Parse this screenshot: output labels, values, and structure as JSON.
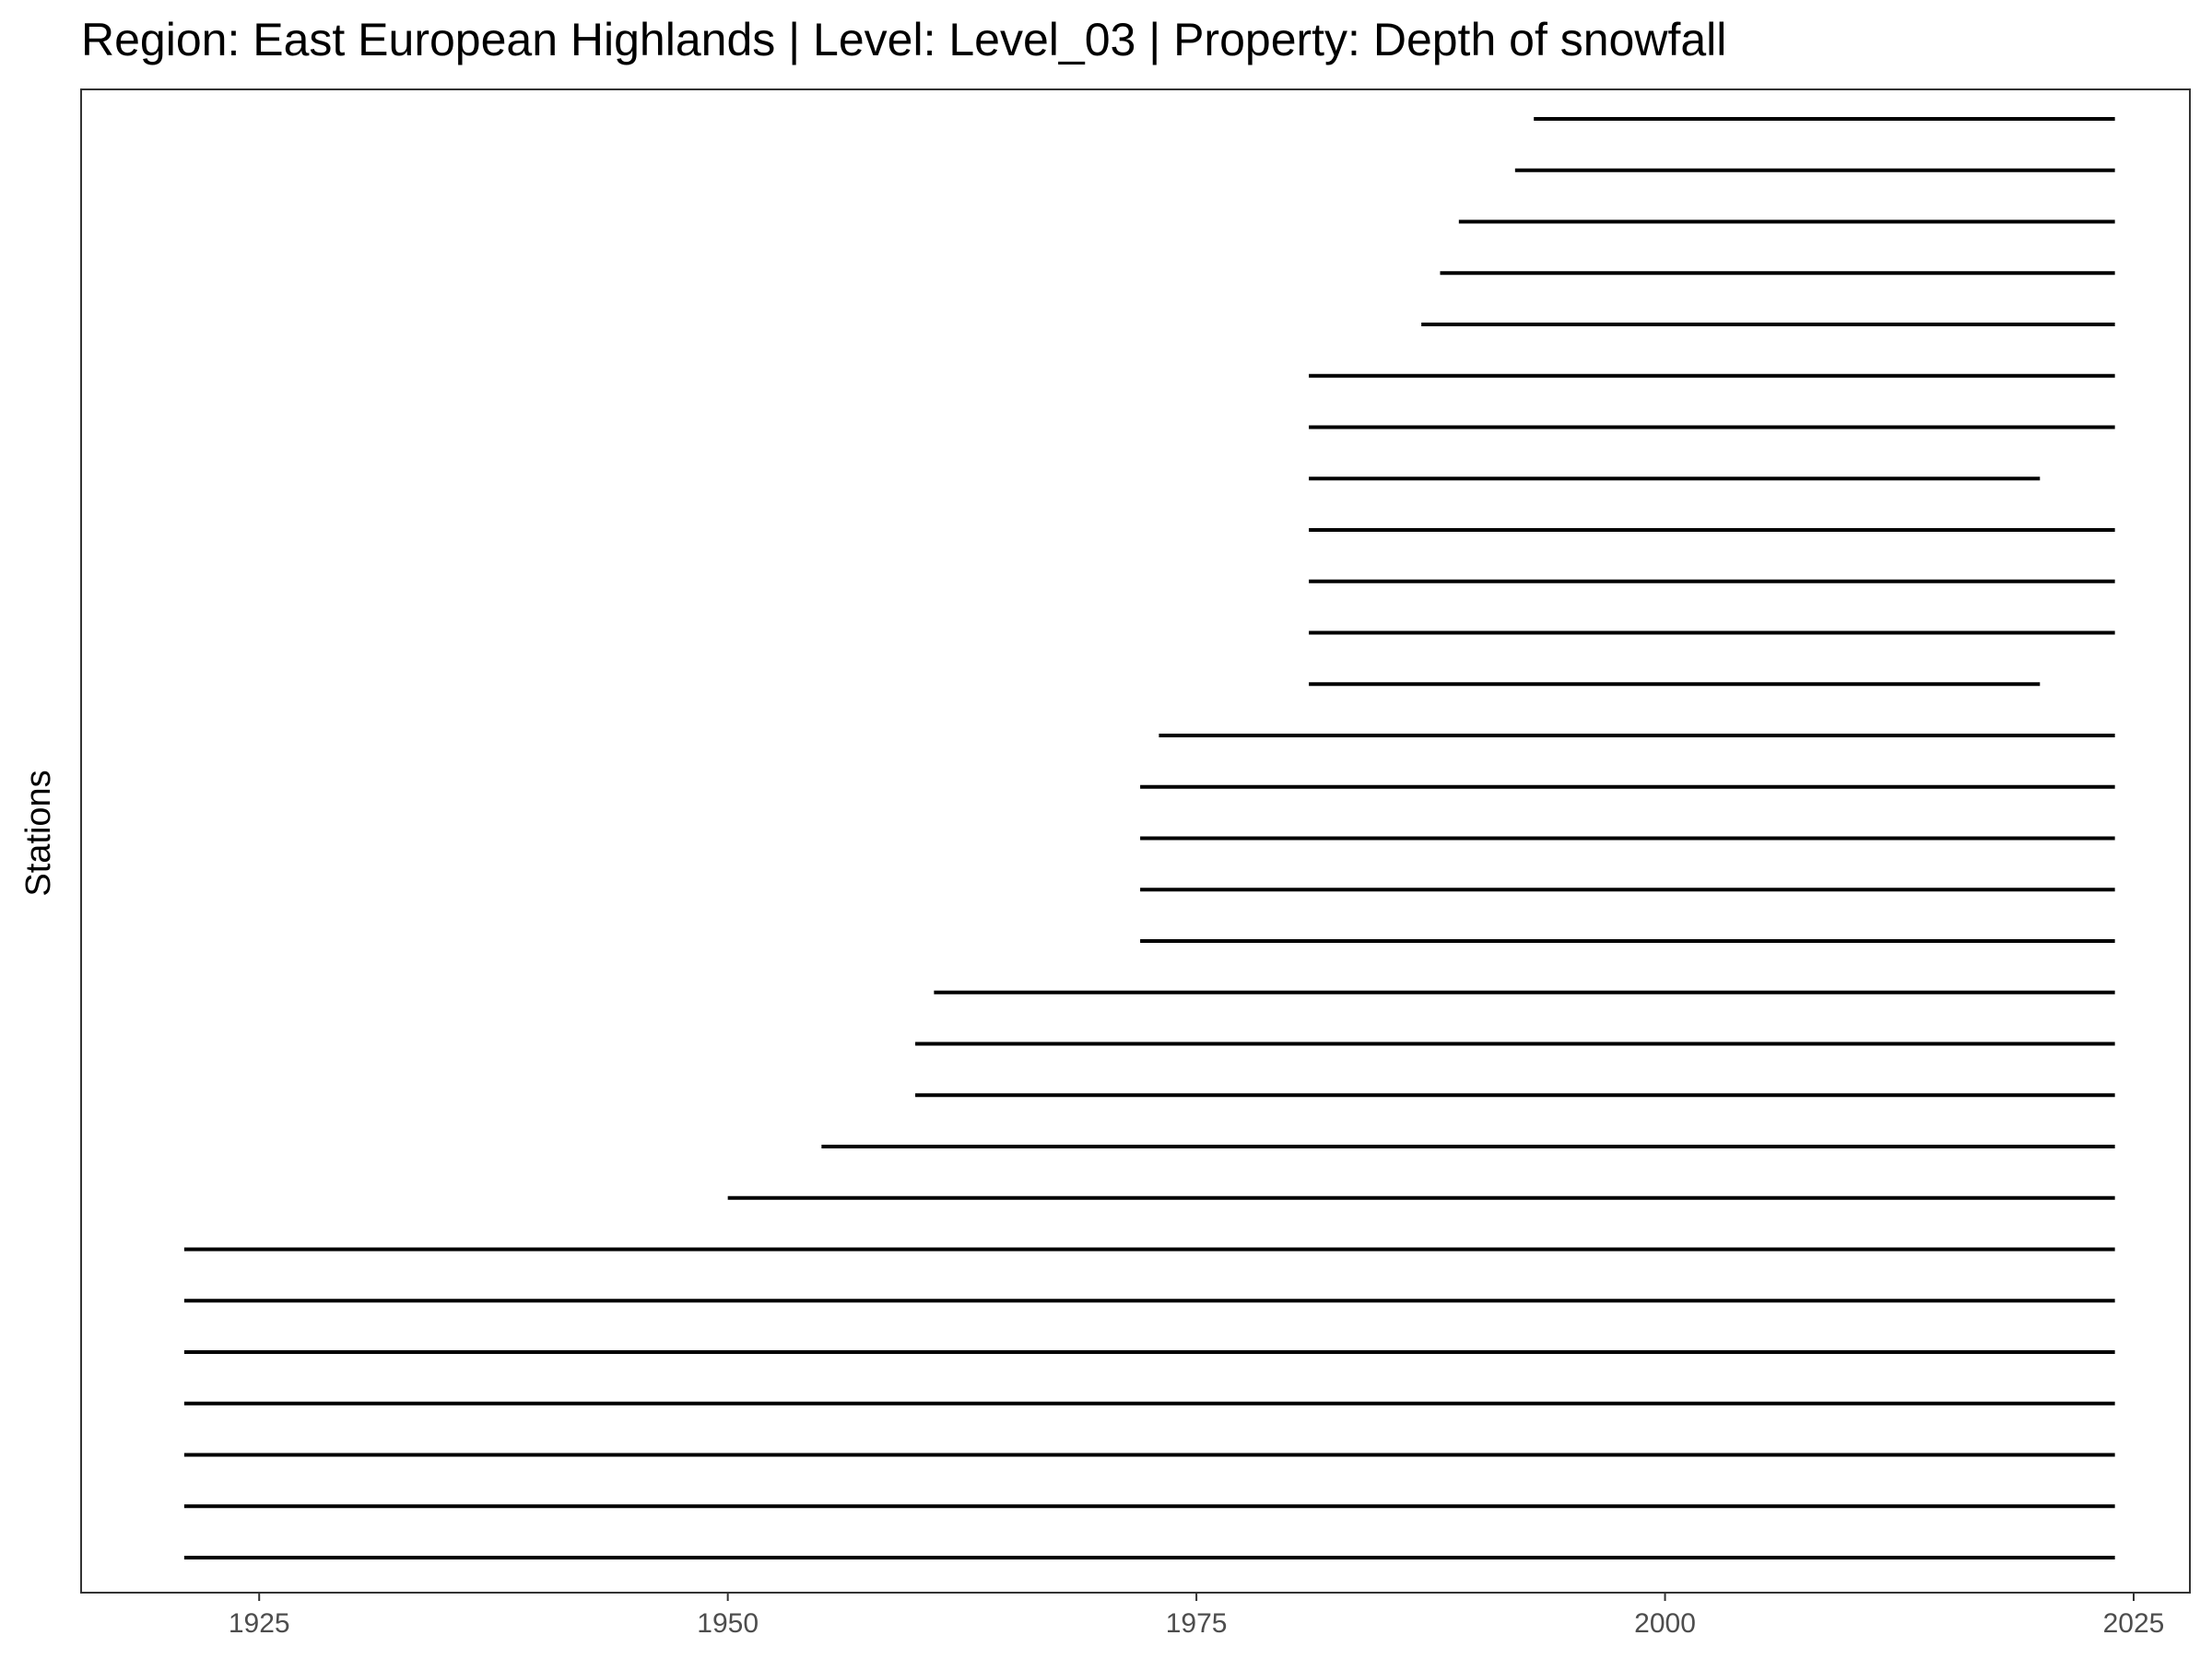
{
  "chart_data": {
    "type": "segment",
    "title": "Region: East European Highlands | Level: Level_03 | Property: Depth of snowfall",
    "xlabel": "",
    "ylabel": "Stations",
    "xlim": [
      1915.5,
      2028
    ],
    "xticks": [
      1925,
      1950,
      1975,
      2000,
      2025
    ],
    "grid": false,
    "legend": "none",
    "colors": {
      "segment": "#000000",
      "tick_label": "#4d4d4d",
      "panel_border": "#333333"
    },
    "series": [
      {
        "start": 1921,
        "end": 2024
      },
      {
        "start": 1921,
        "end": 2024
      },
      {
        "start": 1921,
        "end": 2024
      },
      {
        "start": 1921,
        "end": 2024
      },
      {
        "start": 1921,
        "end": 2024
      },
      {
        "start": 1921,
        "end": 2024
      },
      {
        "start": 1921,
        "end": 2024
      },
      {
        "start": 1950,
        "end": 2024
      },
      {
        "start": 1955,
        "end": 2024
      },
      {
        "start": 1960,
        "end": 2024
      },
      {
        "start": 1960,
        "end": 2024
      },
      {
        "start": 1961,
        "end": 2024
      },
      {
        "start": 1972,
        "end": 2024
      },
      {
        "start": 1972,
        "end": 2024
      },
      {
        "start": 1972,
        "end": 2024
      },
      {
        "start": 1972,
        "end": 2024
      },
      {
        "start": 1973,
        "end": 2024
      },
      {
        "start": 1981,
        "end": 2020
      },
      {
        "start": 1981,
        "end": 2024
      },
      {
        "start": 1981,
        "end": 2024
      },
      {
        "start": 1981,
        "end": 2024
      },
      {
        "start": 1981,
        "end": 2020
      },
      {
        "start": 1981,
        "end": 2024
      },
      {
        "start": 1981,
        "end": 2024
      },
      {
        "start": 1987,
        "end": 2024
      },
      {
        "start": 1988,
        "end": 2024
      },
      {
        "start": 1989,
        "end": 2024
      },
      {
        "start": 1992,
        "end": 2024
      },
      {
        "start": 1993,
        "end": 2024
      }
    ]
  }
}
